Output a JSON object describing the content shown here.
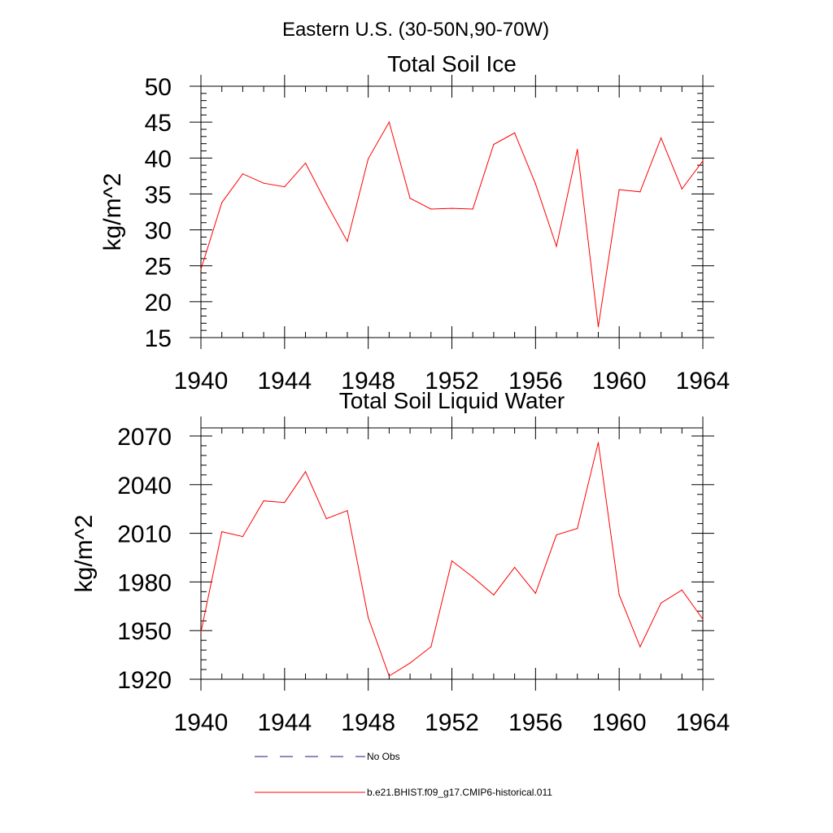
{
  "figure_title": "Eastern U.S. (30-50N,90-70W)",
  "colors": {
    "model_line": "#ff0000",
    "obs_line": "#1a1a80",
    "axis": "#000000"
  },
  "legend": [
    {
      "label": "No Obs",
      "style": "dashed"
    },
    {
      "label": "b.e21.BHIST.f09_g17.CMIP6-historical.011",
      "style": "solid"
    }
  ],
  "chart_data": [
    {
      "type": "line",
      "title": "Total Soil Ice",
      "ylabel": "kg/m^2",
      "xlabel": "",
      "xlim": [
        1940,
        1964
      ],
      "ylim": [
        15,
        50
      ],
      "xticks": [
        1940,
        1944,
        1948,
        1952,
        1956,
        1960,
        1964
      ],
      "yticks": [
        15,
        20,
        25,
        30,
        35,
        40,
        45,
        50
      ],
      "x": [
        1940,
        1941,
        1942,
        1943,
        1944,
        1945,
        1946,
        1947,
        1948,
        1949,
        1950,
        1951,
        1952,
        1953,
        1954,
        1955,
        1956,
        1957,
        1958,
        1959,
        1960,
        1961,
        1962,
        1963,
        1964
      ],
      "series": [
        {
          "name": "b.e21.BHIST.f09_g17.CMIP6-historical.011",
          "values": [
            24.5,
            33.8,
            37.8,
            36.5,
            36.0,
            39.3,
            33.7,
            28.4,
            39.9,
            45.0,
            34.4,
            32.9,
            33.0,
            32.9,
            41.9,
            43.5,
            36.4,
            27.7,
            41.2,
            16.5,
            35.6,
            35.3,
            42.8,
            35.7,
            39.6
          ]
        }
      ]
    },
    {
      "type": "line",
      "title": "Total Soil Liquid Water",
      "ylabel": "kg/m^2",
      "xlabel": "",
      "xlim": [
        1940,
        1964
      ],
      "ylim": [
        1920,
        2075
      ],
      "xticks": [
        1940,
        1944,
        1948,
        1952,
        1956,
        1960,
        1964
      ],
      "yticks": [
        1920,
        1950,
        1980,
        2010,
        2040,
        2070
      ],
      "x": [
        1940,
        1941,
        1942,
        1943,
        1944,
        1945,
        1946,
        1947,
        1948,
        1949,
        1950,
        1951,
        1952,
        1953,
        1954,
        1955,
        1956,
        1957,
        1958,
        1959,
        1960,
        1961,
        1962,
        1963,
        1964
      ],
      "series": [
        {
          "name": "b.e21.BHIST.f09_g17.CMIP6-historical.011",
          "values": [
            1949,
            2011,
            2008,
            2030,
            2029,
            2048,
            2019,
            2024,
            1958,
            1922,
            1930,
            1940,
            1993,
            1983,
            1972,
            1989,
            1973,
            2009,
            2013,
            2066,
            1972,
            1940,
            1967,
            1975,
            1957
          ]
        }
      ]
    }
  ]
}
